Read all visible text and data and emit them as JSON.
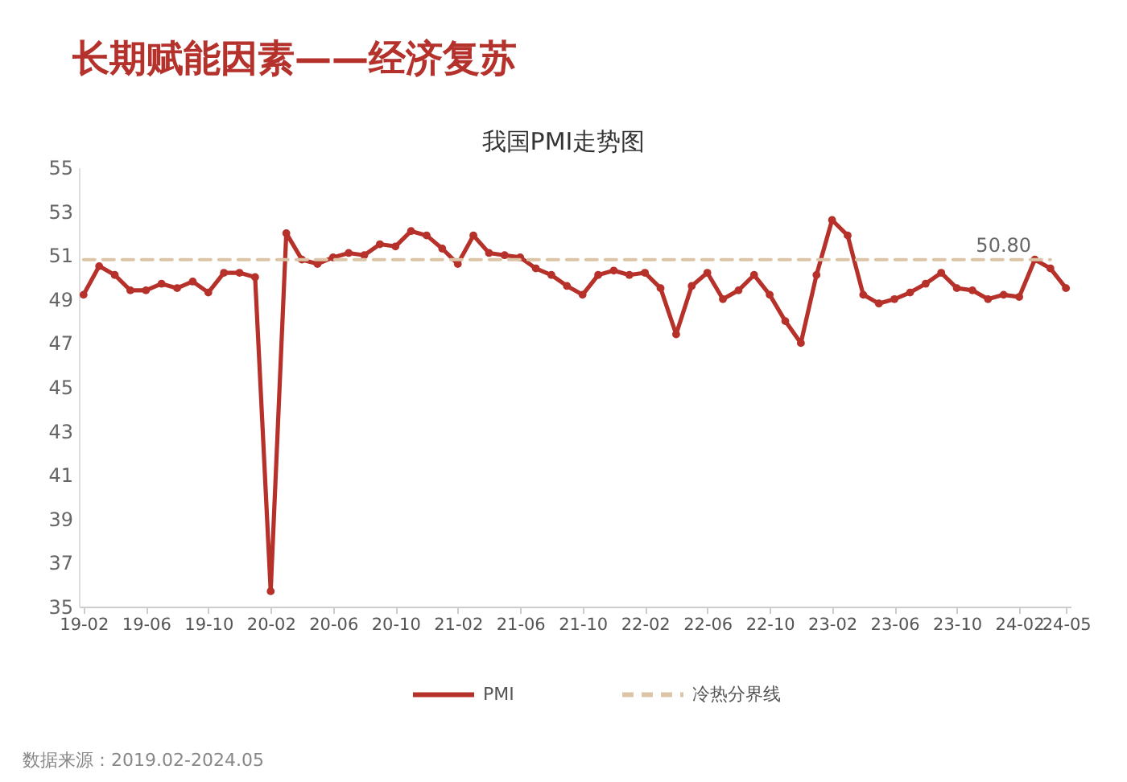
{
  "chart_data": {
    "type": "line",
    "title": "长期赋能因素——经济复苏",
    "subtitle": "我国PMI走势图",
    "categories": [
      "19-02",
      null,
      null,
      null,
      "19-06",
      null,
      null,
      null,
      "19-10",
      null,
      null,
      null,
      "20-02",
      null,
      null,
      null,
      "20-06",
      null,
      null,
      null,
      "20-10",
      null,
      null,
      null,
      "21-02",
      null,
      null,
      null,
      "21-06",
      null,
      null,
      null,
      "21-10",
      null,
      null,
      null,
      "22-02",
      null,
      null,
      null,
      "22-06",
      null,
      null,
      null,
      "22-10",
      null,
      null,
      null,
      "23-02",
      null,
      null,
      null,
      "23-06",
      null,
      null,
      null,
      "23-10",
      null,
      null,
      null,
      "24-02",
      null,
      null,
      "24-05"
    ],
    "series": [
      {
        "name": "PMI",
        "color": "#b7312b",
        "line_style": "solid",
        "values": [
          49.2,
          50.5,
          50.1,
          49.4,
          49.4,
          49.7,
          49.5,
          49.8,
          49.3,
          50.2,
          50.2,
          50.0,
          35.7,
          52.0,
          50.8,
          50.6,
          50.9,
          51.1,
          51.0,
          51.5,
          51.4,
          52.1,
          51.9,
          51.3,
          50.6,
          51.9,
          51.1,
          51.0,
          50.9,
          50.4,
          50.1,
          49.6,
          49.2,
          50.1,
          50.3,
          50.1,
          50.2,
          49.5,
          47.4,
          49.6,
          50.2,
          49.0,
          49.4,
          50.1,
          49.2,
          48.0,
          47.0,
          50.1,
          52.6,
          51.9,
          49.2,
          48.8,
          49.0,
          49.3,
          49.7,
          50.2,
          49.5,
          49.4,
          49.0,
          49.2,
          49.1,
          50.8,
          50.4,
          49.5
        ]
      },
      {
        "name": "冷热分界线",
        "color": "#dcc4a7",
        "line_style": "dashed",
        "marker": "none",
        "values": [
          50.8,
          50.8,
          50.8,
          50.8,
          50.8,
          50.8,
          50.8,
          50.8,
          50.8,
          50.8,
          50.8,
          50.8,
          50.8,
          50.8,
          50.8,
          50.8,
          50.8,
          50.8,
          50.8,
          50.8,
          50.8,
          50.8,
          50.8,
          50.8,
          50.8,
          50.8,
          50.8,
          50.8,
          50.8,
          50.8,
          50.8,
          50.8,
          50.8,
          50.8,
          50.8,
          50.8,
          50.8,
          50.8,
          50.8,
          50.8,
          50.8,
          50.8,
          50.8,
          50.8,
          50.8,
          50.8,
          50.8,
          50.8,
          50.8,
          50.8,
          50.8,
          50.8,
          50.8,
          50.8,
          50.8,
          50.8,
          50.8,
          50.8,
          50.8,
          50.8,
          50.8,
          50.8,
          50.8,
          null
        ],
        "value_labels": [
          null,
          null,
          null,
          null,
          null,
          null,
          null,
          null,
          null,
          null,
          null,
          null,
          null,
          null,
          null,
          null,
          null,
          null,
          null,
          null,
          null,
          null,
          null,
          null,
          null,
          null,
          null,
          null,
          null,
          null,
          null,
          null,
          null,
          null,
          null,
          null,
          null,
          null,
          null,
          null,
          null,
          null,
          null,
          null,
          null,
          null,
          null,
          null,
          null,
          null,
          null,
          null,
          null,
          null,
          null,
          null,
          null,
          null,
          null,
          "50.80",
          null,
          null,
          null,
          null
        ]
      }
    ],
    "ylim": [
      35,
      55
    ],
    "yticks": [
      35,
      37,
      39,
      41,
      43,
      45,
      47,
      49,
      51,
      53,
      55
    ],
    "marker": "circle",
    "legend": "bottom",
    "annotations": [
      "数据来源：2019.02-2024.05"
    ]
  }
}
